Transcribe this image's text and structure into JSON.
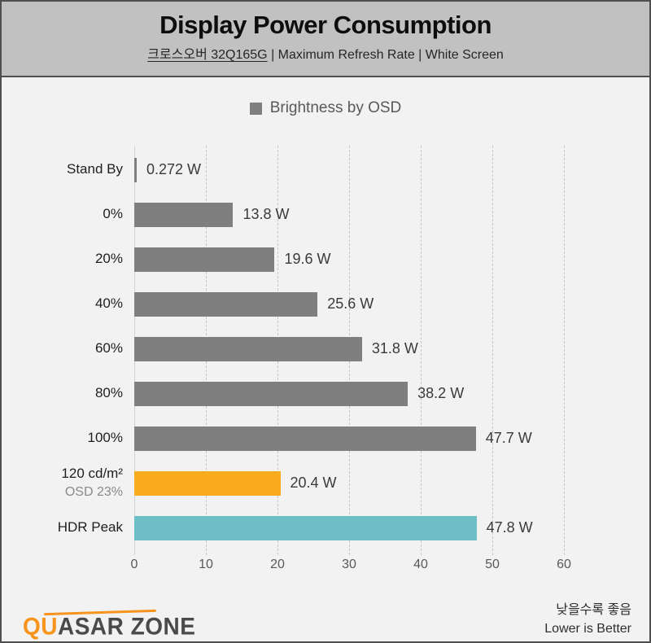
{
  "header": {
    "title": "Display Power Consumption",
    "subtitle_brand": "크로스오버 32Q165G",
    "subtitle_rest": "  |  Maximum Refresh Rate  |  White Screen"
  },
  "legend": {
    "label": "Brightness by OSD",
    "swatch_color": "#7f7f7f"
  },
  "chart_data": {
    "type": "bar",
    "orientation": "horizontal",
    "title": "Display Power Consumption",
    "series_name": "Brightness by OSD",
    "categories": [
      "Stand By",
      "0%",
      "20%",
      "40%",
      "60%",
      "80%",
      "100%",
      "120 cd/m²",
      "HDR Peak"
    ],
    "category_sublabels": [
      "",
      "",
      "",
      "",
      "",
      "",
      "",
      "OSD 23%",
      ""
    ],
    "values": [
      0.272,
      13.8,
      19.6,
      25.6,
      31.8,
      38.2,
      47.7,
      20.4,
      47.8
    ],
    "value_labels": [
      "0.272 W",
      "13.8 W",
      "19.6 W",
      "25.6 W",
      "31.8 W",
      "38.2 W",
      "47.7 W",
      "20.4 W",
      "47.8 W"
    ],
    "bar_colors": [
      "#7f7f7f",
      "#7f7f7f",
      "#7f7f7f",
      "#7f7f7f",
      "#7f7f7f",
      "#7f7f7f",
      "#7f7f7f",
      "#faac1e",
      "#6ebec6"
    ],
    "unit": "W",
    "xlim": [
      0,
      60
    ],
    "xticks": [
      0,
      10,
      20,
      30,
      40,
      50,
      60
    ],
    "grid": "vertical-dashed",
    "legend_position": "top-center"
  },
  "footer": {
    "logo_part1": "QU",
    "logo_part2": "ASAR ZONE",
    "note_korean": "낮을수록 좋음",
    "note_english": "Lower is Better"
  },
  "colors": {
    "header_bg": "#c1c1c1",
    "body_bg": "#f2f2f2",
    "border": "#4f4f4f",
    "bar_gray": "#7f7f7f",
    "bar_orange": "#faac1e",
    "bar_teal": "#6ebec6",
    "logo_orange": "#f7941d",
    "gridline": "#c5c5c5"
  }
}
